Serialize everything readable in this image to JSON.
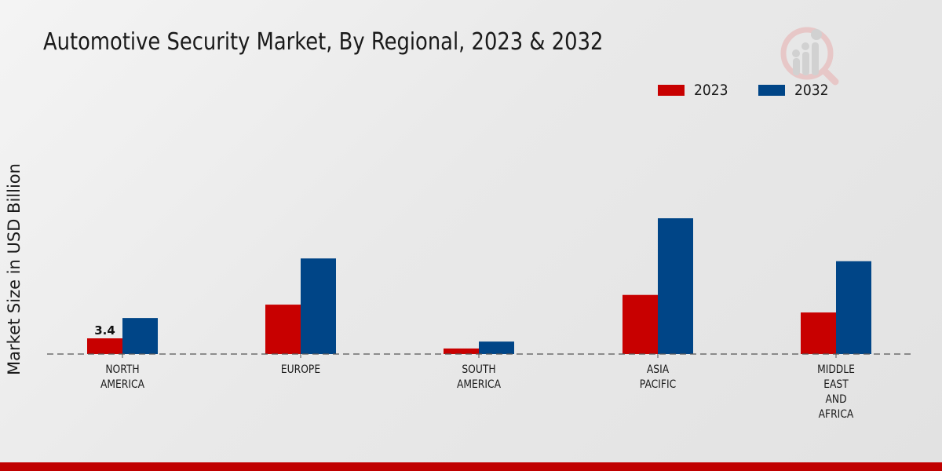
{
  "title": "Automotive Security Market, By Regional, 2023 & 2032",
  "colors": {
    "series_2023": "#c80000",
    "series_2032": "#004587",
    "bottom_bar": "#c00000"
  },
  "logo_icon": "magnifier-bar-chart-logo",
  "chart_data": {
    "type": "bar",
    "title": "Automotive Security Market, By Regional, 2023 & 2032",
    "xlabel": "",
    "ylabel": "Market Size in USD Billion",
    "categories": [
      "NORTH AMERICA",
      "EUROPE",
      "SOUTH AMERICA",
      "ASIA PACIFIC",
      "MIDDLE EAST AND AFRICA"
    ],
    "category_lines": [
      [
        "NORTH",
        "AMERICA"
      ],
      [
        "EUROPE"
      ],
      [
        "SOUTH",
        "AMERICA"
      ],
      [
        "ASIA",
        "PACIFIC"
      ],
      [
        "MIDDLE",
        "EAST",
        "AND",
        "AFRICA"
      ]
    ],
    "series": [
      {
        "name": "2023",
        "color": "#c80000",
        "values": [
          3.4,
          10.7,
          1.2,
          12.8,
          9.0
        ]
      },
      {
        "name": "2032",
        "color": "#004587",
        "values": [
          7.8,
          20.7,
          2.7,
          29.4,
          20.1
        ]
      }
    ],
    "data_labels": [
      {
        "series": "2023",
        "category": "NORTH AMERICA",
        "text": "3.4"
      }
    ],
    "ylim": [
      0,
      35
    ],
    "grid": false,
    "baseline": "dashed",
    "legend": {
      "position": "top-right",
      "entries": [
        "2023",
        "2032"
      ]
    }
  }
}
